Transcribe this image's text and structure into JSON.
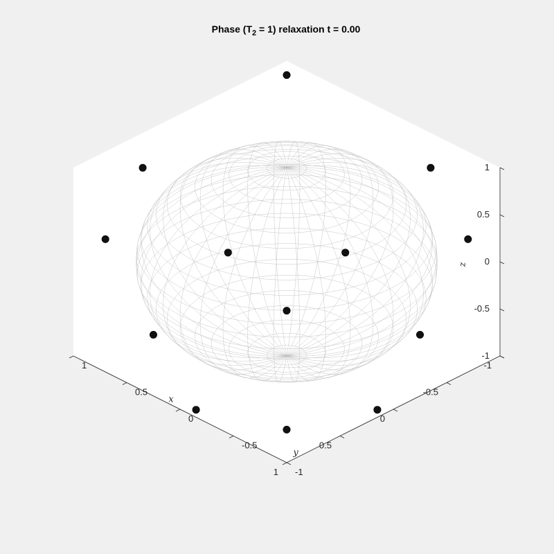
{
  "chart_data": {
    "type": "scatter",
    "title": {
      "pre": "Phase (T",
      "sub": "2",
      "post": " = 1) relaxation t = 0.00"
    },
    "xlabel": "x",
    "ylabel": "y",
    "zlabel": "z",
    "xlim": [
      -1,
      1
    ],
    "ylim": [
      -1,
      1
    ],
    "zlim": [
      -1,
      1
    ],
    "x_ticks": [
      "-1",
      "-0.5",
      "0",
      "0.5",
      "1"
    ],
    "y_ticks": [
      "-1",
      "-0.5",
      "0",
      "0.5",
      "1"
    ],
    "z_ticks": [
      "1",
      "0.5",
      "0",
      "-0.5",
      "-1"
    ],
    "view": "isometric 3D",
    "surface": "unit sphere wireframe",
    "grid": false,
    "series": [
      {
        "marker_color": "#111111",
        "points": [
          {
            "x": 1.0,
            "y": 1.0,
            "z": -0.65
          },
          {
            "x": -1.0,
            "y": 0.35,
            "z": 0.63
          },
          {
            "x": 0.35,
            "y": -1.0,
            "z": 0.63
          },
          {
            "x": 0.85,
            "y": -0.85,
            "z": 0.24
          },
          {
            "x": -0.85,
            "y": 0.85,
            "z": 0.24
          },
          {
            "x": -0.75,
            "y": -0.2,
            "z": -0.44
          },
          {
            "x": -0.2,
            "y": -0.75,
            "z": -0.44
          },
          {
            "x": 0.9,
            "y": 0.9,
            "z": 0.5
          },
          {
            "x": 0.15,
            "y": 1.0,
            "z": -0.92
          },
          {
            "x": 1.0,
            "y": 0.15,
            "z": -0.92
          },
          {
            "x": 1.0,
            "y": -0.25,
            "z": -0.35
          },
          {
            "x": -0.25,
            "y": 1.0,
            "z": -0.35
          },
          {
            "x": -1.0,
            "y": -1.0,
            "z": 0.85
          }
        ]
      }
    ]
  }
}
